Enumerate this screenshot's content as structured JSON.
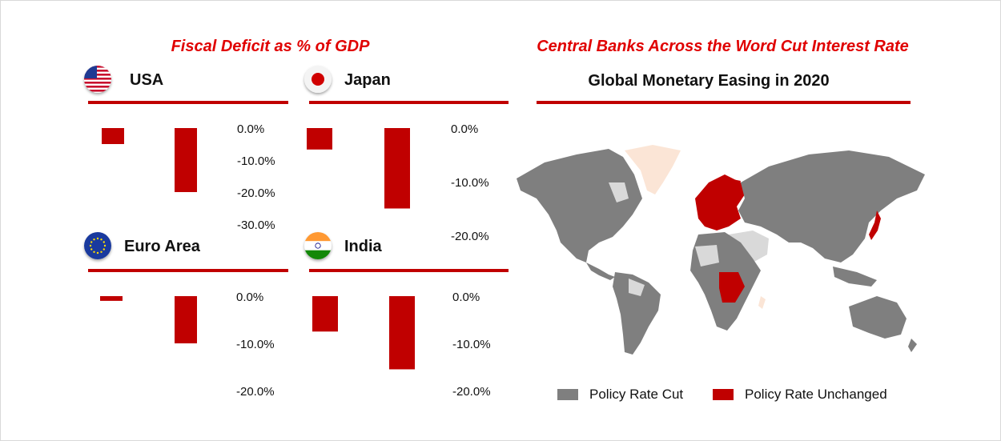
{
  "titles": {
    "fiscal": "Fiscal Deficit as % of GDP",
    "central_banks": "Central Banks Across the Word Cut Interest Rate"
  },
  "colors": {
    "accent_red": "#e00000",
    "bar_red": "#c00000",
    "cut_gray": "#7f7f7f",
    "light_gray": "#d9d9d9",
    "peach": "#fbe5d6"
  },
  "chart_data": [
    {
      "type": "bar",
      "title": "USA",
      "flag_icon": "usa-flag-icon",
      "categories": [
        "",
        ""
      ],
      "values": [
        -5.0,
        -20.0
      ],
      "ylim": [
        -30,
        0
      ],
      "yticks": [
        "0.0%",
        "-10.0%",
        "-20.0%",
        "-30.0%"
      ],
      "xlabel": "",
      "ylabel": ""
    },
    {
      "type": "bar",
      "title": "Japan",
      "flag_icon": "japan-flag-icon",
      "categories": [
        "",
        ""
      ],
      "values": [
        -4.0,
        -15.0
      ],
      "ylim": [
        -20,
        0
      ],
      "yticks": [
        "0.0%",
        "-10.0%",
        "-20.0%"
      ],
      "xlabel": "",
      "ylabel": ""
    },
    {
      "type": "bar",
      "title": "Euro Area",
      "flag_icon": "eu-flag-icon",
      "categories": [
        "",
        ""
      ],
      "values": [
        -1.0,
        -10.0
      ],
      "ylim": [
        -20,
        0
      ],
      "yticks": [
        "0.0%",
        "-10.0%",
        "-20.0%"
      ],
      "xlabel": "",
      "ylabel": ""
    },
    {
      "type": "bar",
      "title": "India",
      "flag_icon": "india-flag-icon",
      "categories": [
        "",
        ""
      ],
      "values": [
        -7.5,
        -15.5
      ],
      "ylim": [
        -20,
        0
      ],
      "yticks": [
        "0.0%",
        "-10.0%",
        "-20.0%"
      ],
      "xlabel": "",
      "ylabel": ""
    }
  ],
  "map": {
    "title": "Global Monetary Easing in 2020",
    "legend": [
      {
        "label": "Policy Rate Cut",
        "color": "#7f7f7f"
      },
      {
        "label": "Policy Rate Unchanged",
        "color": "#c00000"
      }
    ]
  }
}
